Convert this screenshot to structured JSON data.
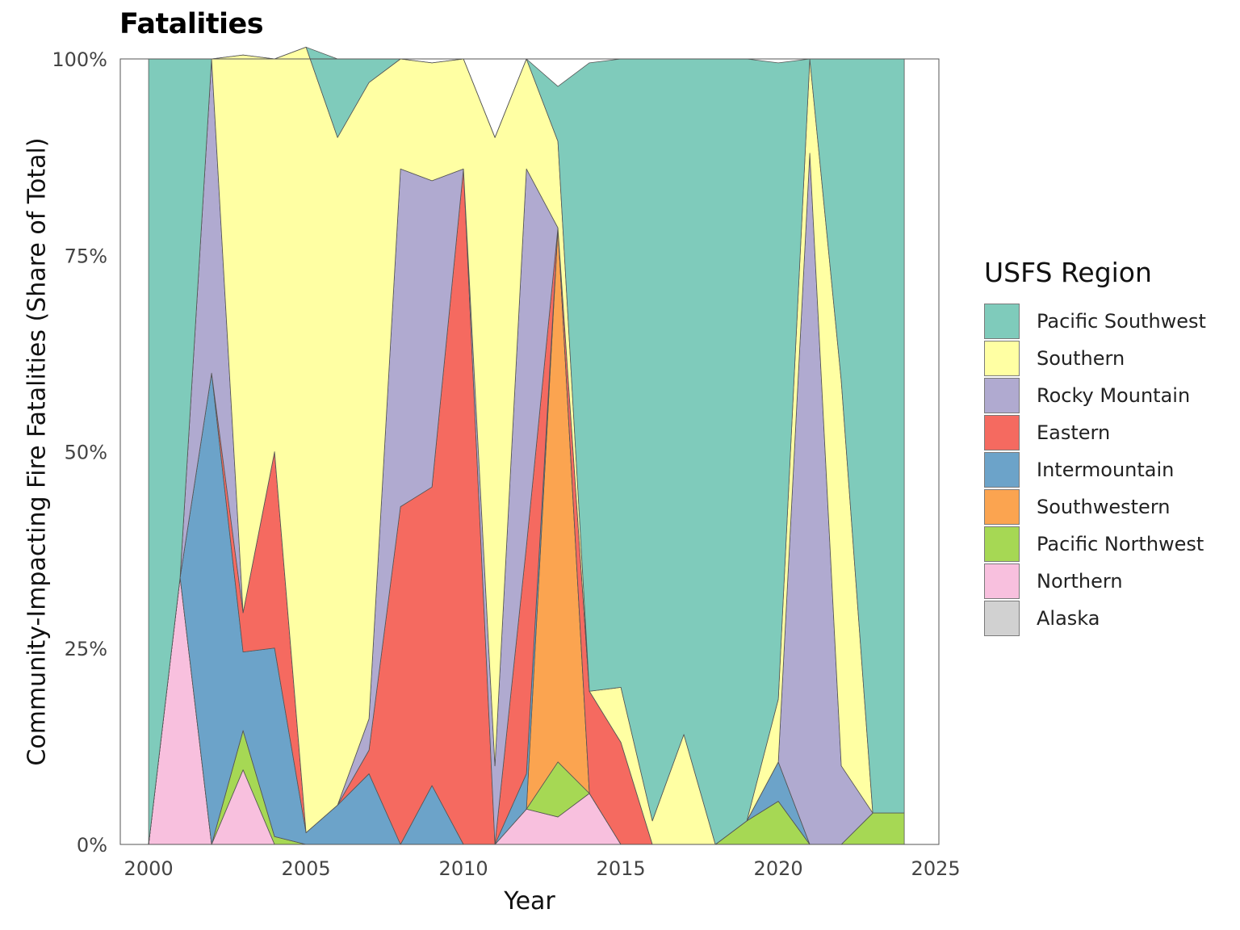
{
  "chart_data": {
    "type": "area",
    "title": "Fatalities",
    "xlabel": "Year",
    "ylabel": "Community-Impacting Fire Fatalities (Share of Total)",
    "xlim": [
      1999.1,
      2025.1
    ],
    "ylim": [
      0,
      1
    ],
    "x_ticks": [
      2000,
      2005,
      2010,
      2015,
      2020,
      2025
    ],
    "x_tick_labels": [
      "2000",
      "2005",
      "2010",
      "2015",
      "2020",
      "2025"
    ],
    "y_ticks": [
      0,
      0.25,
      0.5,
      0.75,
      1
    ],
    "y_tick_labels": [
      "0%",
      "25%",
      "50%",
      "75%",
      "100%"
    ],
    "grid": false,
    "legend_title": "USFS Region",
    "legend_position": "right",
    "stack_order": "bottom-to-top: Alaska, Northern, Pacific Northwest, Southwestern, Intermountain, Eastern, Rocky Mountain, Southern, Pacific Southwest",
    "x": [
      2000,
      2001,
      2002,
      2003,
      2004,
      2005,
      2006,
      2007,
      2008,
      2009,
      2010,
      2011,
      2012,
      2013,
      2014,
      2015,
      2016,
      2017,
      2018,
      2019,
      2020,
      2021,
      2022,
      2023,
      2024
    ],
    "series": [
      {
        "name": "Pacific Southwest",
        "color": "#7fcbbb",
        "values": [
          1.0,
          0.66,
          0.0,
          0.0,
          0.0,
          0.0,
          0.1,
          0.03,
          0.0,
          0.0,
          0.0,
          0.0,
          0.0,
          0.07,
          0.8,
          0.8,
          0.97,
          0.86,
          1.0,
          0.97,
          0.81,
          0.0,
          0.41,
          0.96,
          0.96
        ]
      },
      {
        "name": "Southern",
        "color": "#ffffa3",
        "values": [
          0.0,
          0.0,
          0.0,
          0.71,
          0.5,
          1.0,
          0.85,
          0.81,
          0.14,
          0.15,
          0.14,
          0.8,
          0.14,
          0.11,
          0.0,
          0.07,
          0.03,
          0.14,
          0.0,
          0.0,
          0.08,
          0.12,
          0.49,
          0.0,
          0.0
        ]
      },
      {
        "name": "Rocky Mountain",
        "color": "#b0aad0",
        "values": [
          0.0,
          0.0,
          0.4,
          0.0,
          0.0,
          0.0,
          0.0,
          0.04,
          0.43,
          0.39,
          0.0,
          0.1,
          0.48,
          0.0,
          0.0,
          0.0,
          0.0,
          0.0,
          0.0,
          0.0,
          0.0,
          0.88,
          0.1,
          0.0,
          0.0
        ]
      },
      {
        "name": "Eastern",
        "color": "#f56a60",
        "values": [
          0.0,
          0.0,
          0.0,
          0.05,
          0.25,
          0.0,
          0.0,
          0.03,
          0.43,
          0.38,
          0.86,
          0.0,
          0.29,
          0.0,
          0.13,
          0.13,
          0.0,
          0.0,
          0.0,
          0.0,
          0.0,
          0.0,
          0.0,
          0.0,
          0.0
        ]
      },
      {
        "name": "Intermountain",
        "color": "#6ca3c9",
        "values": [
          0.0,
          0.0,
          0.6,
          0.1,
          0.24,
          0.015,
          0.05,
          0.09,
          0.0,
          0.075,
          0.0,
          0.0,
          0.045,
          0.0,
          0.0,
          0.0,
          0.0,
          0.0,
          0.0,
          0.0,
          0.05,
          0.0,
          0.0,
          0.0,
          0.0
        ]
      },
      {
        "name": "Southwestern",
        "color": "#fba450",
        "values": [
          0.0,
          0.0,
          0.0,
          0.0,
          0.0,
          0.0,
          0.0,
          0.0,
          0.0,
          0.0,
          0.0,
          0.0,
          0.0,
          0.68,
          0.0,
          0.0,
          0.0,
          0.0,
          0.0,
          0.0,
          0.0,
          0.0,
          0.0,
          0.0,
          0.0
        ]
      },
      {
        "name": "Pacific Northwest",
        "color": "#a6d854",
        "values": [
          0.0,
          0.0,
          0.0,
          0.05,
          0.01,
          0.0,
          0.0,
          0.0,
          0.0,
          0.0,
          0.0,
          0.0,
          0.0,
          0.07,
          0.0,
          0.0,
          0.0,
          0.0,
          0.0,
          0.03,
          0.055,
          0.0,
          0.0,
          0.04,
          0.04
        ]
      },
      {
        "name": "Northern",
        "color": "#f8c0de",
        "values": [
          0.0,
          0.34,
          0.0,
          0.095,
          0.0,
          0.0,
          0.0,
          0.0,
          0.0,
          0.0,
          0.0,
          0.0,
          0.045,
          0.035,
          0.065,
          0.0,
          0.0,
          0.0,
          0.0,
          0.0,
          0.0,
          0.0,
          0.0,
          0.0,
          0.0
        ]
      },
      {
        "name": "Alaska",
        "color": "#d1d1d1",
        "values": [
          0.0,
          0.0,
          0.0,
          0.0,
          0.0,
          0.0,
          0.0,
          0.0,
          0.0,
          0.0,
          0.0,
          0.0,
          0.0,
          0.0,
          0.0,
          0.0,
          0.0,
          0.0,
          0.0,
          0.0,
          0.0,
          0.0,
          0.0,
          0.0,
          0.0
        ]
      }
    ]
  }
}
